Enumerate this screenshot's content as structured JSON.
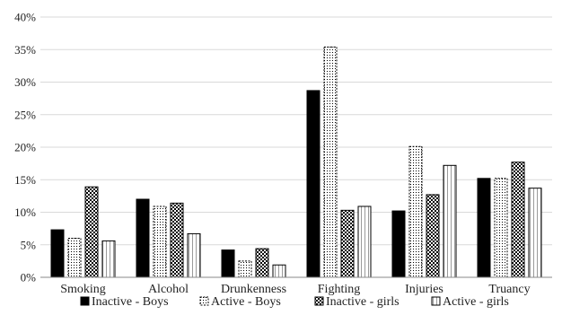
{
  "chart_data": {
    "type": "bar",
    "categories": [
      "Smoking",
      "Alcohol",
      "Drunkenness",
      "Fighting",
      "Injuries",
      "Truancy"
    ],
    "series": [
      {
        "name": "Inactive - Boys",
        "pattern": "solid",
        "values": [
          7.3,
          12.0,
          4.2,
          28.7,
          10.2,
          15.2
        ]
      },
      {
        "name": "Active - Boys",
        "pattern": "dots",
        "values": [
          6.0,
          10.9,
          2.5,
          35.4,
          20.1,
          15.2
        ]
      },
      {
        "name": "Inactive - girls",
        "pattern": "checker",
        "values": [
          13.9,
          11.4,
          4.4,
          10.3,
          12.7,
          17.7
        ]
      },
      {
        "name": "Active - girls",
        "pattern": "vlines",
        "values": [
          5.6,
          6.7,
          1.9,
          10.9,
          17.2,
          13.7
        ]
      }
    ],
    "yticks": [
      "0%",
      "5%",
      "10%",
      "15%",
      "20%",
      "25%",
      "30%",
      "35%",
      "40%"
    ],
    "ylim": [
      0,
      40
    ],
    "title": "",
    "xlabel": "",
    "ylabel": "",
    "grid": true,
    "legend_position": "bottom",
    "colors": {
      "bar_fill": "#000000",
      "bar_stroke": "#000000",
      "grid": "#d9d9d9",
      "axis": "#888888"
    }
  }
}
